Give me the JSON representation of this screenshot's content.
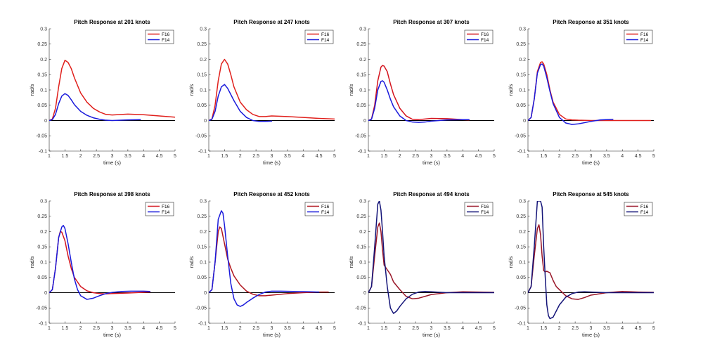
{
  "chart_data": [
    {
      "type": "line",
      "title": "Pitch Response at 201 knots",
      "xlabel": "time (s)",
      "ylabel": "rad/s",
      "xlim": [
        1,
        5
      ],
      "ylim": [
        -0.1,
        0.3
      ],
      "xticks": [
        "1",
        "1.5",
        "2",
        "2.5",
        "3",
        "3.5",
        "4",
        "4.5",
        "5"
      ],
      "yticks": [
        "-0.1",
        "-0.05",
        "0",
        "0.05",
        "0.1",
        "0.15",
        "0.2",
        "0.25",
        "0.3"
      ],
      "legend": {
        "position": "top-right",
        "entries": [
          "F16",
          "F14"
        ]
      },
      "series": [
        {
          "name": "F16",
          "color": "#e0201c",
          "x": [
            1,
            1.1,
            1.2,
            1.3,
            1.4,
            1.5,
            1.6,
            1.7,
            1.8,
            2,
            2.2,
            2.4,
            2.6,
            2.8,
            3,
            3.5,
            4,
            4.5,
            5
          ],
          "y": [
            0,
            0.005,
            0.04,
            0.11,
            0.17,
            0.197,
            0.19,
            0.17,
            0.14,
            0.09,
            0.06,
            0.04,
            0.028,
            0.02,
            0.018,
            0.021,
            0.019,
            0.015,
            0.011
          ]
        },
        {
          "name": "F14",
          "color": "#1a1adb",
          "x": [
            1,
            1.1,
            1.2,
            1.3,
            1.4,
            1.5,
            1.6,
            1.7,
            1.8,
            2,
            2.2,
            2.4,
            2.6,
            2.8,
            3,
            3.5,
            3.9
          ],
          "y": [
            0,
            0.003,
            0.02,
            0.055,
            0.08,
            0.088,
            0.082,
            0.068,
            0.052,
            0.03,
            0.017,
            0.009,
            0.004,
            0.001,
            0,
            0.002,
            0.003
          ]
        }
      ]
    },
    {
      "type": "line",
      "title": "Pitch Response at 247 knots",
      "xlabel": "time (s)",
      "ylabel": "rad/s",
      "xlim": [
        1,
        5
      ],
      "ylim": [
        -0.1,
        0.3
      ],
      "xticks": [
        "1",
        "1.5",
        "2",
        "2.5",
        "3",
        "3.5",
        "4",
        "4.5",
        "5"
      ],
      "yticks": [
        "-0.1",
        "-0.05",
        "0",
        "0.05",
        "0.1",
        "0.15",
        "0.2",
        "0.25",
        "0.3"
      ],
      "legend": {
        "position": "top-right",
        "entries": [
          "F16",
          "F14"
        ]
      },
      "series": [
        {
          "name": "F16",
          "color": "#e0201c",
          "x": [
            1,
            1.1,
            1.2,
            1.3,
            1.4,
            1.5,
            1.6,
            1.7,
            1.8,
            2,
            2.2,
            2.4,
            2.6,
            2.8,
            3,
            3.5,
            4,
            4.5,
            5
          ],
          "y": [
            0,
            0.005,
            0.05,
            0.13,
            0.185,
            0.2,
            0.185,
            0.15,
            0.11,
            0.06,
            0.035,
            0.02,
            0.013,
            0.013,
            0.015,
            0.013,
            0.01,
            0.007,
            0.005
          ]
        },
        {
          "name": "F14",
          "color": "#1a1adb",
          "x": [
            1,
            1.1,
            1.2,
            1.3,
            1.4,
            1.5,
            1.6,
            1.7,
            1.8,
            2,
            2.2,
            2.4,
            2.6,
            2.8,
            3
          ],
          "y": [
            0,
            0.004,
            0.03,
            0.08,
            0.11,
            0.118,
            0.105,
            0.085,
            0.065,
            0.03,
            0.01,
            0,
            -0.003,
            -0.003,
            -0.002
          ]
        }
      ]
    },
    {
      "type": "line",
      "title": "Pitch Response at 307 knots",
      "xlabel": "time (s)",
      "ylabel": "rad/s",
      "xlim": [
        1,
        5
      ],
      "ylim": [
        -0.1,
        0.3
      ],
      "xticks": [
        "1",
        "1.5",
        "2",
        "2.5",
        "3",
        "3.5",
        "4",
        "4.5",
        "5"
      ],
      "yticks": [
        "-0.1",
        "-0.05",
        "0",
        "0.05",
        "0.1",
        "0.15",
        "0.2",
        "0.25",
        "0.3"
      ],
      "legend": {
        "position": "top-right",
        "entries": [
          "F16",
          "F14"
        ]
      },
      "series": [
        {
          "name": "F16",
          "color": "#d4141e",
          "x": [
            1,
            1.1,
            1.2,
            1.3,
            1.4,
            1.45,
            1.5,
            1.6,
            1.7,
            1.8,
            2,
            2.2,
            2.4,
            2.6,
            2.8,
            3,
            3.5,
            4,
            4.2
          ],
          "y": [
            0,
            0.005,
            0.05,
            0.13,
            0.175,
            0.18,
            0.178,
            0.16,
            0.12,
            0.085,
            0.04,
            0.015,
            0.004,
            0.003,
            0.005,
            0.007,
            0.006,
            0.003,
            0.002
          ]
        },
        {
          "name": "F14",
          "color": "#1a1adb",
          "x": [
            1,
            1.1,
            1.2,
            1.3,
            1.4,
            1.45,
            1.5,
            1.6,
            1.7,
            1.8,
            2,
            2.2,
            2.4,
            2.6,
            2.8,
            3,
            3.5,
            4,
            4.2
          ],
          "y": [
            0,
            0.004,
            0.04,
            0.1,
            0.128,
            0.13,
            0.125,
            0.1,
            0.07,
            0.045,
            0.015,
            0,
            -0.005,
            -0.006,
            -0.005,
            -0.002,
            0.002,
            0.003,
            0.003
          ]
        }
      ]
    },
    {
      "type": "line",
      "title": "Pitch Response at 351 knots",
      "xlabel": "time (s)",
      "ylabel": "rad/s",
      "xlim": [
        1,
        5
      ],
      "ylim": [
        -0.1,
        0.3
      ],
      "xticks": [
        "1",
        "1.5",
        "2",
        "2.5",
        "3",
        "3.5",
        "4",
        "4.5",
        "5"
      ],
      "yticks": [
        "-0.1",
        "-0.05",
        "0",
        "0.05",
        "0.1",
        "0.15",
        "0.2",
        "0.25",
        "0.3"
      ],
      "legend": {
        "position": "top-right",
        "entries": [
          "F16",
          "F14"
        ]
      },
      "series": [
        {
          "name": "F16",
          "color": "#e0201c",
          "x": [
            1,
            1.1,
            1.2,
            1.3,
            1.4,
            1.45,
            1.5,
            1.6,
            1.7,
            1.8,
            2,
            2.2,
            2.4,
            2.6,
            3,
            3.5,
            4,
            4.5,
            4.9
          ],
          "y": [
            0,
            0.01,
            0.07,
            0.16,
            0.19,
            0.192,
            0.185,
            0.15,
            0.1,
            0.06,
            0.02,
            0.005,
            0.002,
            0.001,
            0,
            0,
            0,
            0,
            0
          ]
        },
        {
          "name": "F14",
          "color": "#1a1adb",
          "x": [
            1,
            1.1,
            1.2,
            1.3,
            1.4,
            1.45,
            1.5,
            1.6,
            1.7,
            1.8,
            2,
            2.2,
            2.4,
            2.6,
            2.8,
            3,
            3.3,
            3.7
          ],
          "y": [
            0,
            0.01,
            0.07,
            0.155,
            0.183,
            0.185,
            0.178,
            0.14,
            0.095,
            0.055,
            0.01,
            -0.008,
            -0.013,
            -0.011,
            -0.007,
            -0.003,
            0.002,
            0.004
          ]
        }
      ]
    },
    {
      "type": "line",
      "title": "Pitch Response at 398 knots",
      "xlabel": "time (s)",
      "ylabel": "rad/s",
      "xlim": [
        1,
        5
      ],
      "ylim": [
        -0.1,
        0.3
      ],
      "xticks": [
        "1",
        "1.5",
        "2",
        "2.5",
        "3",
        "3.5",
        "4",
        "4.5",
        "5"
      ],
      "yticks": [
        "-0.1",
        "-0.05",
        "0",
        "0.05",
        "0.1",
        "0.15",
        "0.2",
        "0.25",
        "0.3"
      ],
      "legend": {
        "position": "top-right",
        "entries": [
          "F16",
          "F14"
        ]
      },
      "series": [
        {
          "name": "F16",
          "color": "#d4141e",
          "x": [
            1,
            1.1,
            1.2,
            1.3,
            1.35,
            1.4,
            1.5,
            1.6,
            1.7,
            1.8,
            2,
            2.2,
            2.4,
            2.6,
            2.8,
            3,
            3.5,
            4,
            4.2
          ],
          "y": [
            0,
            0.01,
            0.08,
            0.18,
            0.2,
            0.198,
            0.17,
            0.12,
            0.08,
            0.05,
            0.02,
            0.006,
            0,
            -0.003,
            -0.004,
            -0.003,
            -0.001,
            0.001,
            0.002
          ]
        },
        {
          "name": "F14",
          "color": "#1a1adb",
          "x": [
            1,
            1.1,
            1.2,
            1.3,
            1.4,
            1.45,
            1.5,
            1.6,
            1.7,
            1.8,
            1.9,
            2,
            2.2,
            2.4,
            2.6,
            2.8,
            3,
            3.3,
            3.6,
            4,
            4.2
          ],
          "y": [
            0,
            0.01,
            0.08,
            0.18,
            0.215,
            0.22,
            0.21,
            0.16,
            0.1,
            0.045,
            0.01,
            -0.01,
            -0.022,
            -0.018,
            -0.01,
            -0.003,
            0.001,
            0.004,
            0.005,
            0.005,
            0.004
          ]
        }
      ]
    },
    {
      "type": "line",
      "title": "Pitch Response at 452 knots",
      "xlabel": "time (s)",
      "ylabel": "rad/s",
      "xlim": [
        1,
        5
      ],
      "ylim": [
        -0.1,
        0.3
      ],
      "xticks": [
        "1",
        "1.5",
        "2",
        "2.5",
        "3",
        "3.5",
        "4",
        "4.5",
        "5"
      ],
      "yticks": [
        "-0.1",
        "-0.05",
        "0",
        "0.05",
        "0.1",
        "0.15",
        "0.2",
        "0.25",
        "0.3"
      ],
      "legend": {
        "position": "top-right",
        "entries": [
          "F16",
          "F14"
        ]
      },
      "series": [
        {
          "name": "F16",
          "color": "#b0151e",
          "x": [
            1,
            1.1,
            1.2,
            1.3,
            1.35,
            1.4,
            1.5,
            1.6,
            1.7,
            1.8,
            2,
            2.2,
            2.4,
            2.6,
            2.8,
            3,
            3.5,
            4,
            4.5,
            4.8
          ],
          "y": [
            0,
            0.01,
            0.1,
            0.2,
            0.215,
            0.21,
            0.16,
            0.11,
            0.08,
            0.055,
            0.025,
            0.005,
            -0.005,
            -0.01,
            -0.01,
            -0.008,
            -0.003,
            0,
            0.002,
            0.002
          ]
        },
        {
          "name": "F14",
          "color": "#1a1adb",
          "x": [
            1,
            1.1,
            1.2,
            1.3,
            1.4,
            1.45,
            1.5,
            1.6,
            1.7,
            1.8,
            1.9,
            2,
            2.1,
            2.2,
            2.4,
            2.6,
            2.8,
            3,
            3.3,
            3.7,
            4.2,
            4.5
          ],
          "y": [
            0,
            0.01,
            0.1,
            0.24,
            0.268,
            0.26,
            0.22,
            0.12,
            0.03,
            -0.02,
            -0.04,
            -0.045,
            -0.04,
            -0.032,
            -0.018,
            -0.006,
            0.002,
            0.005,
            0.005,
            0.004,
            0.003,
            0.002
          ]
        }
      ]
    },
    {
      "type": "line",
      "title": "Pitch Response at 494 knots",
      "xlabel": "time (s)",
      "ylabel": "rad/s",
      "xlim": [
        1,
        5
      ],
      "ylim": [
        -0.1,
        0.3
      ],
      "xticks": [
        "1",
        "1.5",
        "2",
        "2.5",
        "3",
        "3.5",
        "4",
        "4.5",
        "5"
      ],
      "yticks": [
        "-0.1",
        "-0.05",
        "0",
        "0.05",
        "0.1",
        "0.15",
        "0.2",
        "0.25",
        "0.3"
      ],
      "legend": {
        "position": "top-right",
        "entries": [
          "F16",
          "F14"
        ]
      },
      "series": [
        {
          "name": "F16",
          "color": "#991628",
          "x": [
            1,
            1.1,
            1.2,
            1.3,
            1.35,
            1.4,
            1.45,
            1.5,
            1.6,
            1.7,
            1.8,
            2,
            2.2,
            2.4,
            2.6,
            2.8,
            3,
            3.5,
            4,
            4.5,
            5
          ],
          "y": [
            0,
            0.02,
            0.12,
            0.215,
            0.228,
            0.2,
            0.14,
            0.09,
            0.075,
            0.06,
            0.035,
            0.01,
            -0.012,
            -0.02,
            -0.018,
            -0.012,
            -0.006,
            0,
            0.003,
            0.002,
            0.001
          ]
        },
        {
          "name": "F14",
          "color": "#141478",
          "x": [
            1,
            1.1,
            1.2,
            1.3,
            1.35,
            1.4,
            1.45,
            1.5,
            1.6,
            1.7,
            1.8,
            1.9,
            2,
            2.2,
            2.4,
            2.6,
            2.8,
            3,
            3.5,
            4,
            4.5,
            5
          ],
          "y": [
            0,
            0.02,
            0.15,
            0.29,
            0.3,
            0.27,
            0.2,
            0.12,
            0.02,
            -0.05,
            -0.068,
            -0.06,
            -0.045,
            -0.02,
            -0.005,
            0.002,
            0.004,
            0.003,
            0,
            0,
            0,
            0
          ]
        }
      ]
    },
    {
      "type": "line",
      "title": "Pitch Response at 545 knots",
      "xlabel": "time (s)",
      "ylabel": "rad/s",
      "xlim": [
        1,
        5
      ],
      "ylim": [
        -0.1,
        0.3
      ],
      "xticks": [
        "1",
        "1.5",
        "2",
        "2.5",
        "3",
        "3.5",
        "4",
        "4.5",
        "5"
      ],
      "yticks": [
        "-0.1",
        "-0.05",
        "0",
        "0.05",
        "0.1",
        "0.15",
        "0.2",
        "0.25",
        "0.3"
      ],
      "legend": {
        "position": "top-right",
        "entries": [
          "F16",
          "F14"
        ]
      },
      "series": [
        {
          "name": "F16",
          "color": "#991628",
          "x": [
            1,
            1.1,
            1.2,
            1.3,
            1.35,
            1.4,
            1.45,
            1.5,
            1.55,
            1.6,
            1.7,
            1.8,
            1.9,
            2,
            2.2,
            2.4,
            2.6,
            2.8,
            3,
            3.5,
            4,
            4.5,
            5
          ],
          "y": [
            0,
            0.02,
            0.12,
            0.21,
            0.222,
            0.19,
            0.12,
            0.072,
            0.068,
            0.07,
            0.065,
            0.04,
            0.02,
            0.01,
            -0.01,
            -0.02,
            -0.022,
            -0.016,
            -0.008,
            0,
            0.004,
            0.002,
            0.001
          ]
        },
        {
          "name": "F14",
          "color": "#141478",
          "x": [
            1,
            1.1,
            1.2,
            1.3,
            1.35,
            1.4,
            1.45,
            1.5,
            1.55,
            1.6,
            1.65,
            1.7,
            1.8,
            1.9,
            2,
            2.2,
            2.4,
            2.6,
            2.8,
            3,
            3.5,
            4,
            4.5,
            5
          ],
          "y": [
            0,
            0.02,
            0.15,
            0.3,
            0.3,
            0.3,
            0.28,
            0.15,
            0.05,
            -0.04,
            -0.075,
            -0.085,
            -0.08,
            -0.06,
            -0.04,
            -0.015,
            -0.003,
            0.002,
            0.003,
            0.002,
            0,
            0,
            0,
            0
          ]
        }
      ]
    }
  ]
}
